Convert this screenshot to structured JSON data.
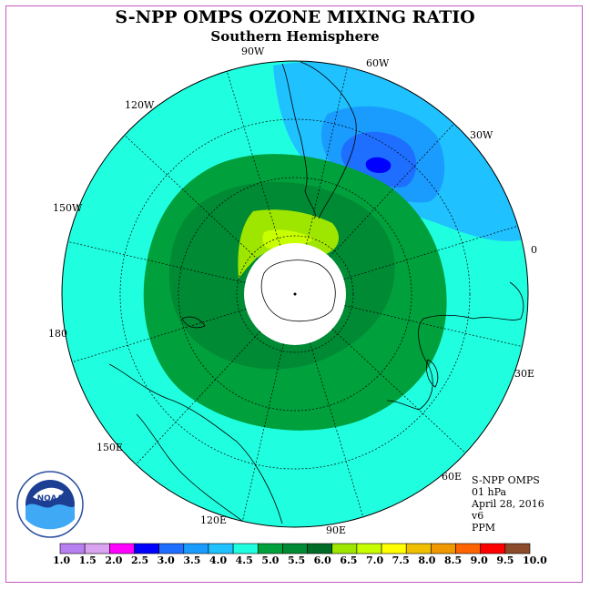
{
  "title": "S-NPP OMPS OZONE MIXING RATIO",
  "subtitle": "Southern Hemisphere",
  "longitude_labels": [
    "90W",
    "60W",
    "30W",
    "0",
    "30E",
    "60E",
    "90E",
    "120E",
    "150E",
    "180",
    "150W",
    "120W"
  ],
  "info": {
    "instrument": "S-NPP OMPS",
    "level": "01 hPa",
    "date": "April 28, 2016",
    "version": "v6",
    "units": "PPM"
  },
  "logo_text": "NOAA",
  "colorbar": {
    "labels": [
      "1.0",
      "1.5",
      "2.0",
      "2.5",
      "3.0",
      "3.5",
      "4.0",
      "4.5",
      "5.0",
      "5.5",
      "6.0",
      "6.5",
      "7.0",
      "7.5",
      "8.0",
      "8.5",
      "9.0",
      "9.5",
      "10.0"
    ],
    "colors": [
      "#b87ff0",
      "#d9a3f0",
      "#ff00ff",
      "#0000ff",
      "#1e6fff",
      "#1a9cff",
      "#1fc1ff",
      "#1fffe0",
      "#00a03c",
      "#008a34",
      "#006a28",
      "#9ee600",
      "#c8ff00",
      "#ffff00",
      "#f0c000",
      "#f09800",
      "#ff6400",
      "#ff0000",
      "#8b4a2a"
    ]
  },
  "colors": {
    "map_background": "#1fffe0",
    "frame": "#c15ac1"
  }
}
